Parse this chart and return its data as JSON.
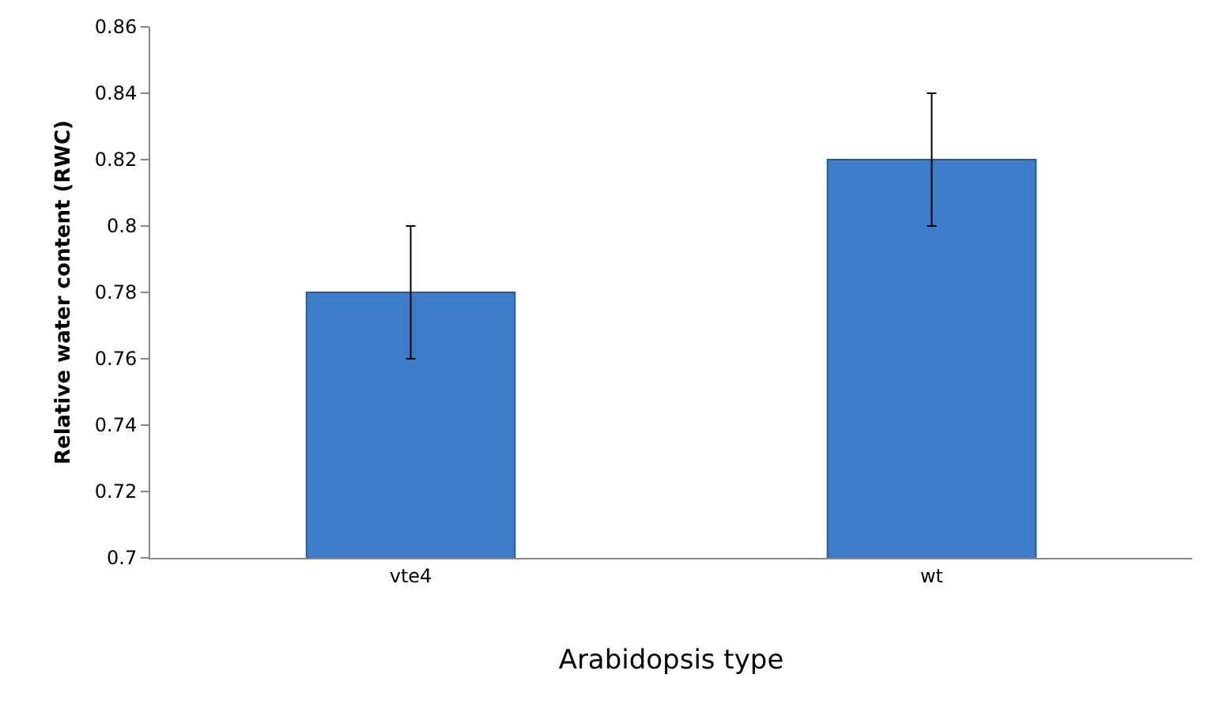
{
  "chart_data": {
    "type": "bar",
    "xlabel": "Arabidopsis type",
    "ylabel": "Relative water content (RWC)",
    "categories": [
      "vte4",
      "wt"
    ],
    "values": [
      0.78,
      0.82
    ],
    "errors": [
      0.02,
      0.02
    ],
    "color": "#3d7cc9",
    "ylim": [
      0.7,
      0.86
    ],
    "yticks": [
      {
        "value": 0.7,
        "label": "0.7"
      },
      0.72,
      0.74,
      0.76,
      0.78,
      {
        "value": 0.8,
        "label": "0.8"
      },
      0.82,
      0.84,
      0.86
    ],
    "legend": false
  }
}
